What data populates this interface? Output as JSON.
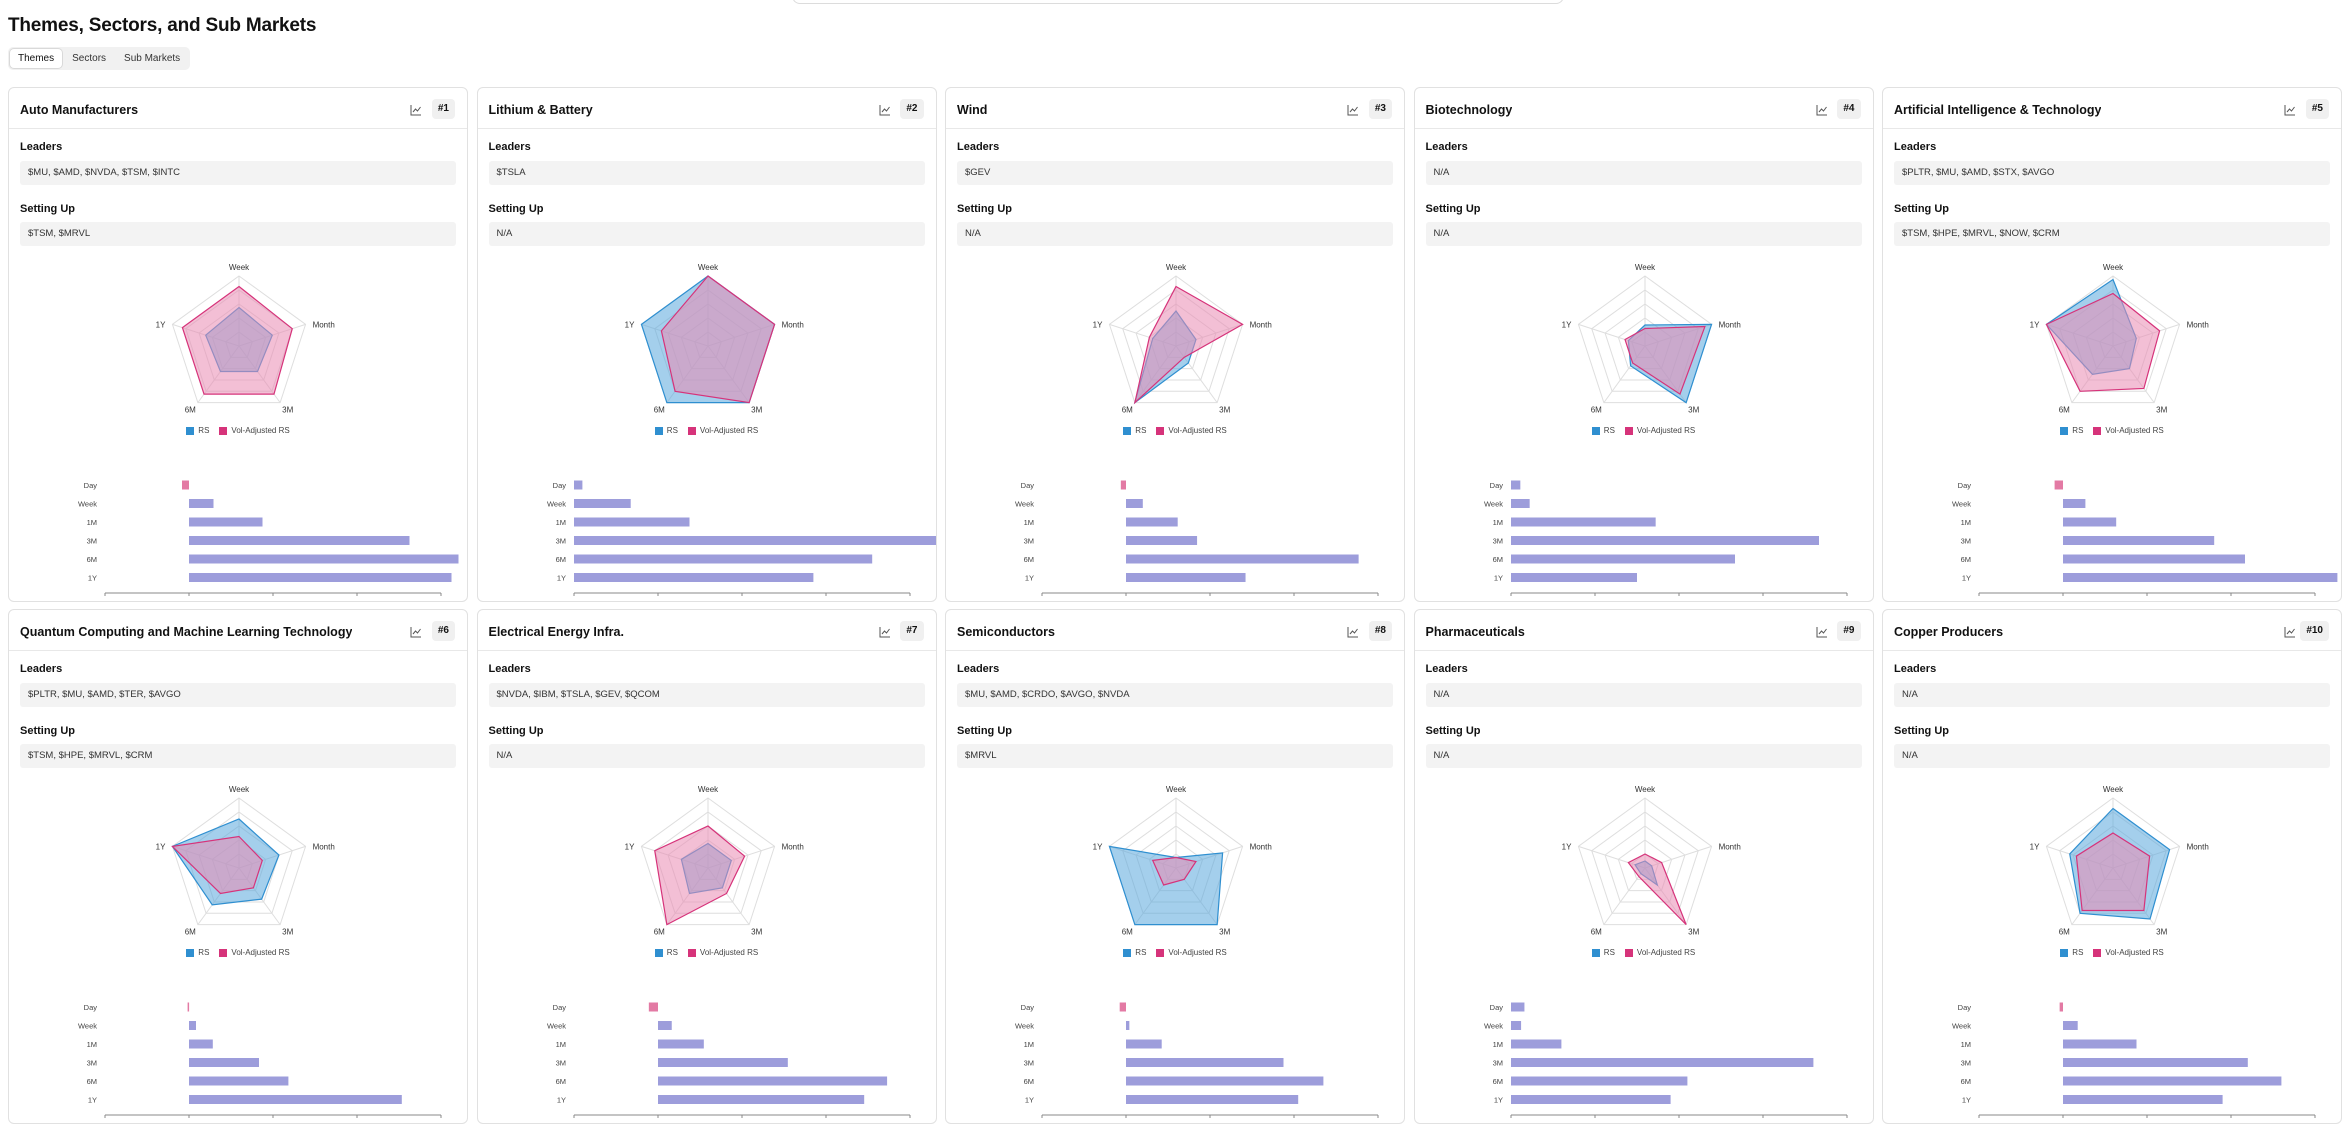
{
  "page": {
    "title": "Themes, Sectors, and Sub Markets",
    "tabs": [
      "Themes",
      "Sectors",
      "Sub Markets"
    ],
    "active_tab": 0
  },
  "labels": {
    "leaders": "Leaders",
    "setting_up": "Setting Up",
    "legend_rs": "RS",
    "legend_vol": "Vol-Adjusted RS"
  },
  "radar_axes": [
    "Week",
    "Month",
    "3M",
    "6M",
    "1Y"
  ],
  "bar_categories": [
    "Day",
    "Week",
    "1M",
    "3M",
    "6M",
    "1Y"
  ],
  "colors": {
    "rs": "#2f8fd0",
    "rs_fill": "#5aa8dc",
    "vol": "#d6337a",
    "vol_fill": "#ea8ab2",
    "bar_positive": "#9d9ddb",
    "bar_negative": "#e37aa4"
  },
  "cards": [
    {
      "title": "Auto Manufacturers",
      "rank": "#1",
      "leaders": "$MU, $AMD, $NVDA, $TSM, $INTC",
      "setting_up": "$TSM, $MRVL",
      "chart_data": {
        "type": "radar-and-bar",
        "radar": {
          "axes": [
            "Week",
            "Month",
            "3M",
            "6M",
            "1Y"
          ],
          "rs": [
            0.55,
            0.5,
            0.45,
            0.45,
            0.5
          ],
          "vol_adjusted_rs": [
            0.85,
            0.8,
            0.85,
            0.85,
            0.85
          ]
        },
        "bars": {
          "categories": [
            "Day",
            "Week",
            "1M",
            "3M",
            "6M",
            "1Y"
          ],
          "values": [
            -1.0,
            3.5,
            10.5,
            31.5,
            38.5,
            37.5
          ],
          "ticks": [
            "-12.0%",
            "0.0%",
            "12.0%",
            "24.0%",
            "36.0%"
          ]
        }
      }
    },
    {
      "title": "Lithium & Battery",
      "rank": "#2",
      "leaders": "$TSLA",
      "setting_up": "N/A",
      "chart_data": {
        "type": "radar-and-bar",
        "radar": {
          "axes": [
            "Week",
            "Month",
            "3M",
            "6M",
            "1Y"
          ],
          "rs": [
            1.0,
            1.0,
            1.0,
            1.0,
            1.0
          ],
          "vol_adjusted_rs": [
            1.0,
            1.0,
            1.0,
            0.8,
            0.7
          ]
        },
        "bars": {
          "categories": [
            "Day",
            "Week",
            "1M",
            "3M",
            "6M",
            "1Y"
          ],
          "values": [
            2.0,
            13.5,
            27.5,
            88.0,
            71.0,
            57.0
          ],
          "ticks": [
            "0.0%",
            "20.0%",
            "40.0%",
            "60.0%",
            "80.0%"
          ]
        }
      }
    },
    {
      "title": "Wind",
      "rank": "#3",
      "leaders": "$GEV",
      "setting_up": "N/A",
      "chart_data": {
        "type": "radar-and-bar",
        "radar": {
          "axes": [
            "Week",
            "Month",
            "3M",
            "6M",
            "1Y"
          ],
          "rs": [
            0.5,
            0.3,
            0.3,
            1.0,
            0.35
          ],
          "vol_adjusted_rs": [
            0.85,
            1.0,
            0.2,
            1.0,
            0.4
          ]
        },
        "bars": {
          "categories": [
            "Day",
            "Week",
            "1M",
            "3M",
            "6M",
            "1Y"
          ],
          "values": [
            -0.8,
            2.6,
            8.0,
            11.0,
            36.0,
            18.5
          ],
          "ticks": [
            "-13.0%",
            "0.0%",
            "13.0%",
            "26.0%",
            "39.0%"
          ]
        }
      }
    },
    {
      "title": "Biotechnology",
      "rank": "#4",
      "leaders": "N/A",
      "setting_up": "N/A",
      "chart_data": {
        "type": "radar-and-bar",
        "radar": {
          "axes": [
            "Week",
            "Month",
            "3M",
            "6M",
            "1Y"
          ],
          "rs": [
            0.3,
            1.0,
            1.0,
            0.35,
            0.25
          ],
          "vol_adjusted_rs": [
            0.25,
            0.9,
            0.85,
            0.3,
            0.3
          ]
        },
        "bars": {
          "categories": [
            "Day",
            "Week",
            "1M",
            "3M",
            "6M",
            "1Y"
          ],
          "values": [
            1.0,
            2.0,
            15.5,
            33.0,
            24.0,
            13.5
          ],
          "ticks": [
            "0.0%",
            "9.0%",
            "18.0%",
            "27.0%",
            "36.0%"
          ]
        }
      }
    },
    {
      "title": "Artificial Intelligence & Technology",
      "rank": "#5",
      "leaders": "$PLTR, $MU, $AMD, $STX, $AVGO",
      "setting_up": "$TSM, $HPE, $MRVL, $NOW, $CRM",
      "chart_data": {
        "type": "radar-and-bar",
        "radar": {
          "axes": [
            "Week",
            "Month",
            "3M",
            "6M",
            "1Y"
          ],
          "rs": [
            0.95,
            0.35,
            0.4,
            0.5,
            1.0
          ],
          "vol_adjusted_rs": [
            0.75,
            0.7,
            0.75,
            0.8,
            1.0
          ]
        },
        "bars": {
          "categories": [
            "Day",
            "Week",
            "1M",
            "3M",
            "6M",
            "1Y"
          ],
          "values": [
            -1.5,
            4.0,
            9.5,
            27.0,
            32.5,
            49.0
          ],
          "ticks": [
            "-15.0%",
            "0.0%",
            "15.0%",
            "30.0%",
            "45.0%"
          ]
        }
      }
    },
    {
      "title": "Quantum Computing and Machine Learning Technology",
      "rank": "#6",
      "leaders": "$PLTR, $MU, $AMD, $TER, $AVGO",
      "setting_up": "$TSM, $HPE, $MRVL, $CRM",
      "chart_data": {
        "type": "radar-and-bar",
        "radar": {
          "axes": [
            "Week",
            "Month",
            "3M",
            "6M",
            "1Y"
          ],
          "rs": [
            0.7,
            0.6,
            0.55,
            0.65,
            1.0
          ],
          "vol_adjusted_rs": [
            0.45,
            0.35,
            0.35,
            0.45,
            1.0
          ]
        },
        "bars": {
          "categories": [
            "Day",
            "Week",
            "1M",
            "3M",
            "6M",
            "1Y"
          ],
          "values": [
            -0.5,
            2.5,
            8.5,
            25.0,
            35.5,
            76.0
          ],
          "ticks": [
            "-30.0%",
            "0.0%",
            "30.0%",
            "60.0%",
            "90.0%"
          ]
        }
      }
    },
    {
      "title": "Electrical Energy Infra.",
      "rank": "#7",
      "leaders": "$NVDA, $IBM, $TSLA, $GEV, $QCOM",
      "setting_up": "N/A",
      "chart_data": {
        "type": "radar-and-bar",
        "radar": {
          "axes": [
            "Week",
            "Month",
            "3M",
            "6M",
            "1Y"
          ],
          "rs": [
            0.35,
            0.35,
            0.35,
            0.45,
            0.4
          ],
          "vol_adjusted_rs": [
            0.6,
            0.55,
            0.45,
            1.0,
            0.8
          ]
        },
        "bars": {
          "categories": [
            "Day",
            "Week",
            "1M",
            "3M",
            "6M",
            "1Y"
          ],
          "values": [
            -1.2,
            1.8,
            6.0,
            17.0,
            30.0,
            27.0
          ],
          "ticks": [
            "-11.0%",
            "0.0%",
            "11.0%",
            "22.0%",
            "33.0%"
          ]
        }
      }
    },
    {
      "title": "Semiconductors",
      "rank": "#8",
      "leaders": "$MU, $AMD, $CRDO, $AVGO, $NVDA",
      "setting_up": "$MRVL",
      "chart_data": {
        "type": "radar-and-bar",
        "radar": {
          "axes": [
            "Week",
            "Month",
            "3M",
            "6M",
            "1Y"
          ],
          "rs": [
            0.15,
            0.7,
            1.0,
            1.0,
            1.0
          ],
          "vol_adjusted_rs": [
            0.15,
            0.3,
            0.2,
            0.3,
            0.35
          ]
        },
        "bars": {
          "categories": [
            "Day",
            "Week",
            "1M",
            "3M",
            "6M",
            "1Y"
          ],
          "values": [
            -1.5,
            0.8,
            8.5,
            37.5,
            47.0,
            41.0
          ],
          "ticks": [
            "-20.0%",
            "0.0%",
            "20.0%",
            "40.0%",
            "60.0%"
          ]
        }
      }
    },
    {
      "title": "Pharmaceuticals",
      "rank": "#9",
      "leaders": "N/A",
      "setting_up": "N/A",
      "chart_data": {
        "type": "radar-and-bar",
        "radar": {
          "axes": [
            "Week",
            "Month",
            "3M",
            "6M",
            "1Y"
          ],
          "rs": [
            0.1,
            0.1,
            0.3,
            0.1,
            0.15
          ],
          "vol_adjusted_rs": [
            0.2,
            0.25,
            1.0,
            0.15,
            0.25
          ]
        },
        "bars": {
          "categories": [
            "Day",
            "Week",
            "1M",
            "3M",
            "6M",
            "1Y"
          ],
          "values": [
            0.8,
            0.6,
            3.0,
            18.0,
            10.5,
            9.5
          ],
          "ticks": [
            "0.0%",
            "5.0%",
            "10.0%",
            "15.0%",
            "20.0%"
          ]
        }
      }
    },
    {
      "title": "Copper Producers",
      "rank": "#10",
      "leaders": "N/A",
      "setting_up": "N/A",
      "chart_data": {
        "type": "radar-and-bar",
        "radar": {
          "axes": [
            "Week",
            "Month",
            "3M",
            "6M",
            "1Y"
          ],
          "rs": [
            0.85,
            0.85,
            0.9,
            0.8,
            0.65
          ],
          "vol_adjusted_rs": [
            0.5,
            0.55,
            0.75,
            0.75,
            0.55
          ]
        },
        "bars": {
          "categories": [
            "Day",
            "Week",
            "1M",
            "3M",
            "6M",
            "1Y"
          ],
          "values": [
            -0.8,
            3.5,
            17.5,
            44.0,
            52.0,
            38.0
          ],
          "ticks": [
            "-20.0%",
            "0.0%",
            "20.0%",
            "40.0%",
            "60.0%"
          ]
        }
      }
    }
  ]
}
